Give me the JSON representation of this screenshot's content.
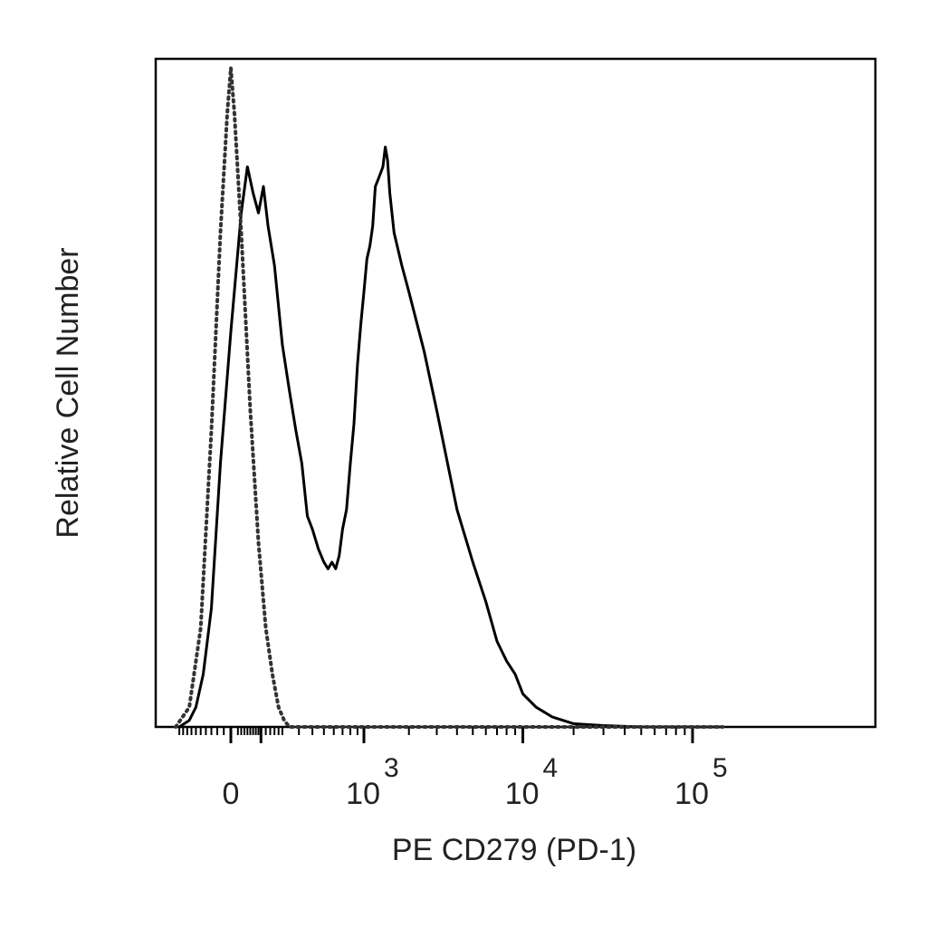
{
  "chart_data": {
    "type": "area",
    "xlabel": "PE CD279 (PD-1)",
    "ylabel": "Relative Cell Number",
    "x_scale": "biexponential",
    "x_ticks": [
      {
        "value": 0,
        "label": "0",
        "base": "",
        "exp": ""
      },
      {
        "value": 1000,
        "label": "10^3",
        "base": "10",
        "exp": "3"
      },
      {
        "value": 10000,
        "label": "10^4",
        "base": "10",
        "exp": "4"
      },
      {
        "value": 100000,
        "label": "10^5",
        "base": "10",
        "exp": "5"
      }
    ],
    "ylim": [
      0,
      100
    ],
    "grid": false,
    "legend": "none",
    "colors": {
      "stained": "#000000",
      "control": "#333333"
    },
    "series": [
      {
        "id": "stained",
        "line_style": "solid",
        "points": [
          [
            -200,
            0
          ],
          [
            -150,
            1
          ],
          [
            -120,
            3
          ],
          [
            -90,
            8
          ],
          [
            -60,
            18
          ],
          [
            -30,
            40
          ],
          [
            0,
            60
          ],
          [
            30,
            78
          ],
          [
            50,
            85
          ],
          [
            70,
            81
          ],
          [
            90,
            78
          ],
          [
            110,
            82
          ],
          [
            130,
            76
          ],
          [
            160,
            70
          ],
          [
            200,
            58
          ],
          [
            240,
            51
          ],
          [
            280,
            45
          ],
          [
            320,
            40
          ],
          [
            360,
            32
          ],
          [
            400,
            30
          ],
          [
            450,
            27
          ],
          [
            500,
            25
          ],
          [
            540,
            24
          ],
          [
            580,
            25
          ],
          [
            620,
            24
          ],
          [
            660,
            26
          ],
          [
            700,
            30
          ],
          [
            750,
            33
          ],
          [
            800,
            40
          ],
          [
            850,
            46
          ],
          [
            900,
            55
          ],
          [
            950,
            61
          ],
          [
            1000,
            66
          ],
          [
            1050,
            71
          ],
          [
            1100,
            73
          ],
          [
            1150,
            76
          ],
          [
            1200,
            82
          ],
          [
            1250,
            83
          ],
          [
            1300,
            84
          ],
          [
            1350,
            85
          ],
          [
            1400,
            88
          ],
          [
            1450,
            86
          ],
          [
            1500,
            81
          ],
          [
            1600,
            75
          ],
          [
            1800,
            70
          ],
          [
            2000,
            66
          ],
          [
            2500,
            57
          ],
          [
            3000,
            48
          ],
          [
            3500,
            40
          ],
          [
            4000,
            33
          ],
          [
            5000,
            25
          ],
          [
            6000,
            19
          ],
          [
            7000,
            13
          ],
          [
            8000,
            10
          ],
          [
            9000,
            8
          ],
          [
            10000,
            5
          ],
          [
            12000,
            3
          ],
          [
            15000,
            1.5
          ],
          [
            20000,
            0.5
          ],
          [
            30000,
            0.2
          ],
          [
            50000,
            0
          ],
          [
            150000,
            0
          ]
        ]
      },
      {
        "id": "control",
        "line_style": "dotted",
        "points": [
          [
            -220,
            0
          ],
          [
            -150,
            3
          ],
          [
            -100,
            15
          ],
          [
            -60,
            45
          ],
          [
            -30,
            75
          ],
          [
            -10,
            93
          ],
          [
            0,
            100
          ],
          [
            10,
            93
          ],
          [
            30,
            75
          ],
          [
            60,
            48
          ],
          [
            90,
            28
          ],
          [
            120,
            15
          ],
          [
            150,
            8
          ],
          [
            180,
            3
          ],
          [
            210,
            1
          ],
          [
            240,
            0
          ],
          [
            150000,
            0
          ]
        ]
      }
    ]
  }
}
